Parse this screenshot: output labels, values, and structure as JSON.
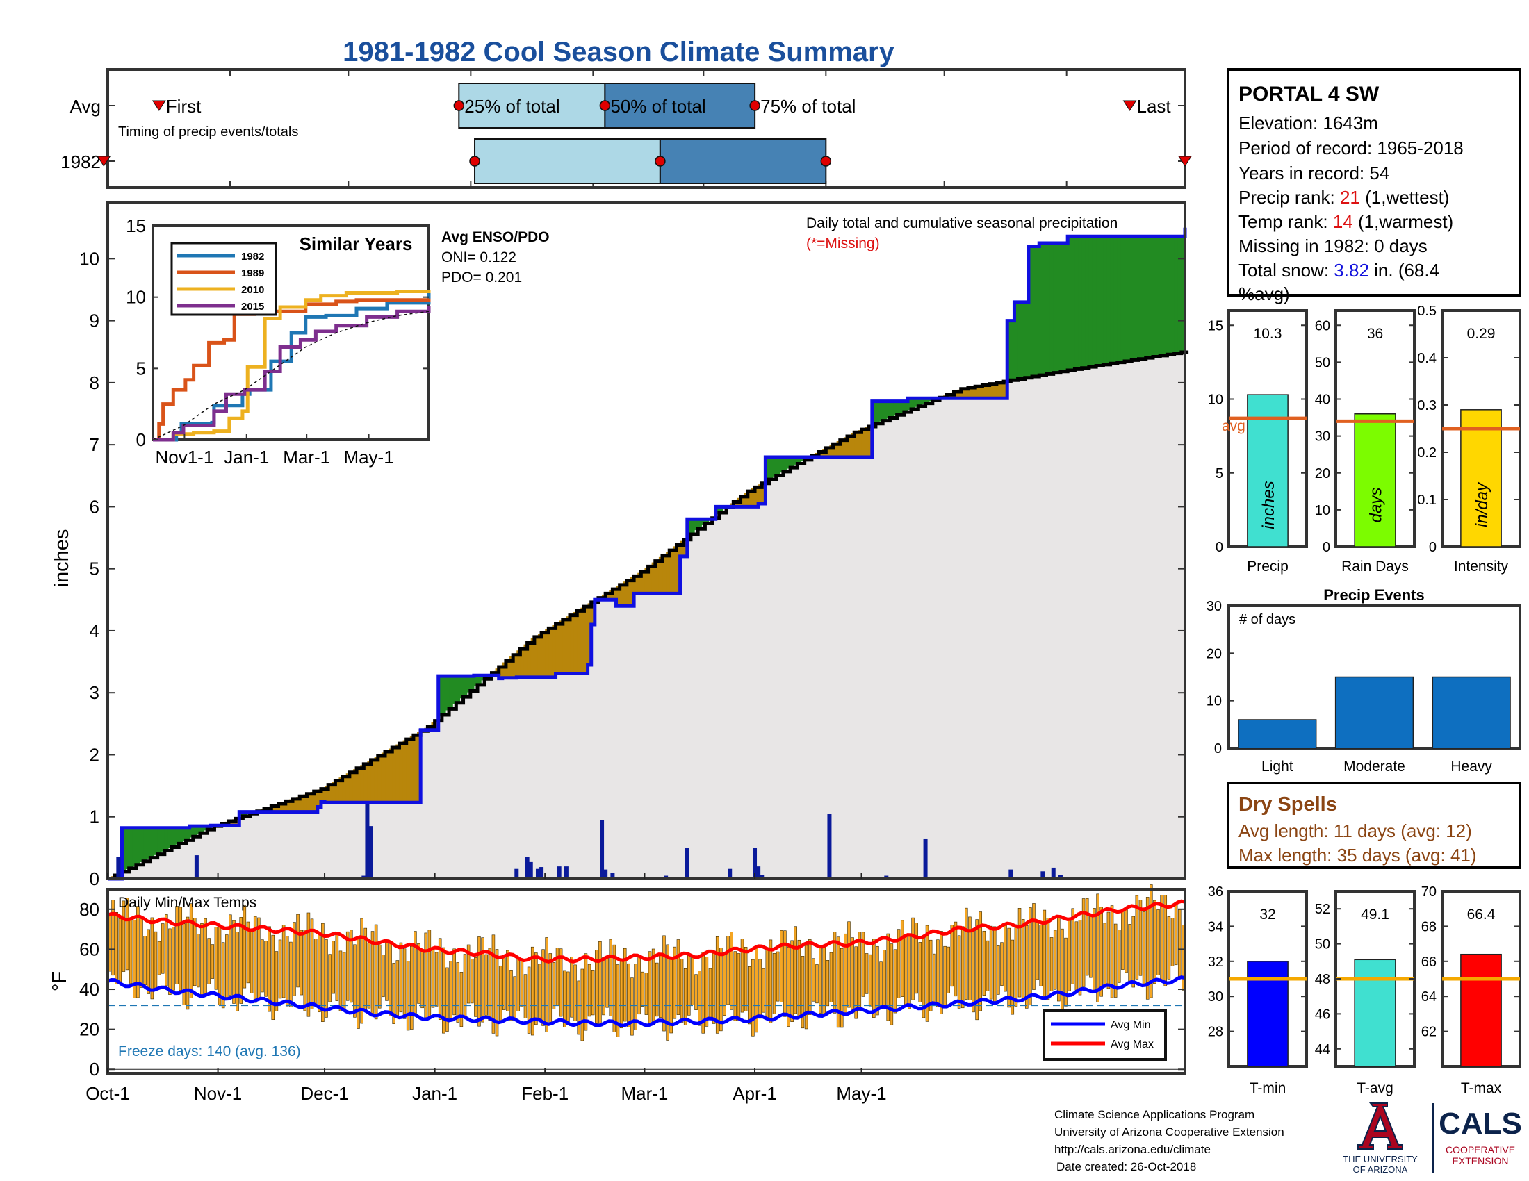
{
  "title": "1981-1982 Cool Season Climate Summary",
  "timing": {
    "row_labels": [
      "Avg",
      "1982"
    ],
    "first_label": "First",
    "last_label": "Last",
    "p25_label": "25% of total",
    "p50_label": "50% of total",
    "p75_label": "75% of total",
    "caption": "Timing of precip events/totals",
    "avg": {
      "first": 13,
      "p25": 89,
      "p50": 126,
      "p75": 164,
      "last": 259
    },
    "y1982": {
      "first": -1,
      "p25": 93,
      "p50": 140,
      "p75": 182,
      "last": 273
    }
  },
  "station": {
    "name": "PORTAL 4 SW",
    "elevation": "Elevation: 1643m",
    "period": "Period of record: 1965-2018",
    "years": "Years in record: 54",
    "precip_rank_label": "Precip rank: ",
    "precip_rank_value": "21",
    "precip_rank_note": " (1,wettest)",
    "temp_rank_label": "Temp rank: ",
    "temp_rank_value": "14",
    "temp_rank_note": " (1,warmest)",
    "missing": "Missing in 1982: 0 days",
    "snow_label": "Total snow: ",
    "snow_value": "3.82",
    "snow_note_1": " in. (68.4",
    "snow_note_2": "%avg)"
  },
  "precip_panel": {
    "ylabel": "inches",
    "yticks": [
      0,
      1,
      2,
      3,
      4,
      5,
      6,
      7,
      8,
      9,
      10
    ],
    "xticks": [
      "Oct-1",
      "Nov-1",
      "Dec-1",
      "Jan-1",
      "Feb-1",
      "Mar-1",
      "Apr-1",
      "May-1"
    ],
    "legend_line1": "Daily total and cumulative seasonal precipitation",
    "legend_line2": "(*=Missing)",
    "enso_title": "Avg ENSO/PDO",
    "oni": "ONI= 0.122",
    "pdo": "PDO= 0.201"
  },
  "similar_years": {
    "title": "Similar Years",
    "yticks": [
      "0",
      "5",
      "10",
      "15"
    ],
    "xticks": [
      "Nov1-1",
      "Jan-1",
      "Mar-1",
      "May-1"
    ],
    "legend": [
      "1982",
      "1989",
      "2010",
      "2015"
    ]
  },
  "temp_panel": {
    "ylabel": "°F",
    "title": "Daily Min/Max Temps",
    "yticks": [
      0,
      20,
      40,
      60,
      80
    ],
    "freeze_line": 32,
    "freeze_text": "Freeze days: 140 (avg. 136)",
    "legend_min": "Avg Min",
    "legend_max": "Avg Max"
  },
  "summary_bars": [
    {
      "name": "Precip",
      "unit": "inches",
      "value": 10.3,
      "value_label": "10.3",
      "avg": 8.7,
      "ylim": [
        0,
        16
      ],
      "yticks": [
        "0",
        "5",
        "10",
        "15"
      ],
      "yvals": [
        0,
        5,
        10,
        15
      ],
      "color": "#40e0d0",
      "avg_label": "avg"
    },
    {
      "name": "Rain Days",
      "unit": "days",
      "value": 36,
      "value_label": "36",
      "avg": 34,
      "ylim": [
        0,
        64
      ],
      "yticks": [
        "0",
        "10",
        "20",
        "30",
        "40",
        "50",
        "60"
      ],
      "yvals": [
        0,
        10,
        20,
        30,
        40,
        50,
        60
      ],
      "color": "#7cfc00",
      "avg_label": ""
    },
    {
      "name": "Intensity",
      "unit": "in/day",
      "value": 0.29,
      "value_label": "0.29",
      "avg": 0.25,
      "ylim": [
        0,
        0.5
      ],
      "yticks": [
        "0",
        "0.1",
        "0.2",
        "0.3",
        "0.4",
        "0.5"
      ],
      "yvals": [
        0,
        0.1,
        0.2,
        0.3,
        0.4,
        0.5
      ],
      "color": "#ffd700",
      "avg_label": ""
    }
  ],
  "precip_events": {
    "title": "Precip Events",
    "ylabel": "# of days",
    "categories": [
      "Light",
      "Moderate",
      "Heavy"
    ],
    "values": [
      6,
      15,
      15
    ],
    "ylim": [
      0,
      30
    ],
    "yticks": [
      "0",
      "10",
      "20",
      "30"
    ]
  },
  "dry_spells": {
    "title": "Dry Spells",
    "avg_length": "Avg length: 11 days (avg: 12)",
    "max_length": "Max length: 35 days (avg: 41)"
  },
  "temp_bars": [
    {
      "name": "T-min",
      "value": 32,
      "value_label": "32",
      "avg": 31,
      "ylim": [
        26,
        36
      ],
      "yticks": [
        "28",
        "30",
        "32",
        "34",
        "36"
      ],
      "yvals": [
        28,
        30,
        32,
        34,
        36
      ],
      "color": "#0000ff"
    },
    {
      "name": "T-avg",
      "value": 49.1,
      "value_label": "49.1",
      "avg": 48,
      "ylim": [
        43,
        53
      ],
      "yticks": [
        "44",
        "46",
        "48",
        "50",
        "52"
      ],
      "yvals": [
        44,
        46,
        48,
        50,
        52
      ],
      "color": "#40e0d0"
    },
    {
      "name": "T-max",
      "value": 66.4,
      "value_label": "66.4",
      "avg": 65,
      "ylim": [
        60,
        70
      ],
      "yticks": [
        "62",
        "64",
        "66",
        "68",
        "70"
      ],
      "yvals": [
        62,
        64,
        66,
        68,
        70
      ],
      "color": "#ff0000"
    }
  ],
  "footer": {
    "line1": "Climate Science Applications Program",
    "line2": "University of Arizona Cooperative Extension",
    "line3": "http://cals.arizona.edu/climate",
    "line4": "Date created: 26-Oct-2018",
    "ua_line1": "THE UNIVERSITY",
    "ua_line2": "OF ARIZONA",
    "cals": "CALS",
    "cals_sub1": "COOPERATIVE",
    "cals_sub2": "EXTENSION"
  },
  "chart_data": [
    {
      "type": "area",
      "title": "Daily total and cumulative seasonal precipitation",
      "ylabel": "inches",
      "ylim": [
        0,
        10.5
      ],
      "x_unit": "day of season from Oct-1",
      "series": [
        {
          "name": "Cumulative 1982",
          "x": [
            0,
            4,
            23,
            27,
            29,
            37,
            59,
            60,
            61,
            87,
            88,
            93,
            103,
            110,
            111,
            115,
            119,
            121,
            126,
            135,
            136,
            137,
            143,
            148,
            161,
            163,
            171,
            183,
            185,
            210,
            215,
            225,
            253,
            255,
            259,
            260,
            262,
            270,
            273,
            275,
            303
          ],
          "values": [
            0,
            0.82,
            0.85,
            0.85,
            0.86,
            1.08,
            1.16,
            1.24,
            1.23,
            1.23,
            2.4,
            3.27,
            3.28,
            3.23,
            3.24,
            3.25,
            3.25,
            3.25,
            3.31,
            3.45,
            4.1,
            4.5,
            4.4,
            4.6,
            5.2,
            5.8,
            6.0,
            6.05,
            6.8,
            6.8,
            7.7,
            7.75,
            9.0,
            9.3,
            10.2,
            10.2,
            10.25,
            10.36,
            10.36,
            10.36,
            10.5
          ]
        },
        {
          "name": "Average",
          "x": [
            0,
            30,
            60,
            90,
            120,
            150,
            180,
            210,
            240,
            270,
            303
          ],
          "values": [
            0.0,
            0.85,
            1.45,
            2.45,
            3.9,
            4.95,
            6.25,
            7.2,
            7.9,
            8.2,
            8.5
          ]
        }
      ],
      "daily_precip": {
        "x": [
          3,
          25,
          72,
          73,
          74,
          115,
          118,
          119,
          121,
          122,
          127,
          129,
          139,
          140,
          142,
          150,
          157,
          163,
          175,
          182,
          183,
          184,
          203,
          219,
          230,
          254,
          263,
          266,
          268
        ],
        "values": [
          0.35,
          0.38,
          0.05,
          1.2,
          0.85,
          0.16,
          0.35,
          0.27,
          0.16,
          0.19,
          0.2,
          0.2,
          0.95,
          0.15,
          0.1,
          0.02,
          0.05,
          0.5,
          0.16,
          0.5,
          0.2,
          0.06,
          1.05,
          0.05,
          0.65,
          0.15,
          0.12,
          0.18,
          0.06
        ]
      },
      "xticks": [
        "Oct-1",
        "Nov-1",
        "Dec-1",
        "Jan-1",
        "Feb-1",
        "Mar-1",
        "Apr-1",
        "May-1"
      ]
    },
    {
      "type": "line",
      "title": "Similar Years",
      "ylim": [
        0,
        15
      ],
      "x_unit": "day of season",
      "series": [
        {
          "name": "1982",
          "x": [
            0,
            23,
            28,
            58,
            60,
            88,
            95,
            116,
            136,
            150,
            170,
            200,
            230,
            271
          ],
          "values": [
            0,
            0.5,
            1.1,
            1.2,
            2.4,
            3.2,
            3.5,
            5.5,
            7.5,
            8.6,
            8.7,
            9.2,
            9.6,
            10.3
          ]
        },
        {
          "name": "1989",
          "x": [
            0,
            6,
            10,
            20,
            32,
            40,
            55,
            70,
            80,
            100,
            120,
            150,
            180,
            200,
            230,
            271
          ],
          "values": [
            0,
            1.1,
            2.5,
            3.5,
            4.2,
            5.2,
            6.8,
            7.0,
            8.8,
            8.9,
            9.0,
            9.5,
            9.7,
            9.8,
            9.8,
            9.9
          ]
        },
        {
          "name": "2010",
          "x": [
            0,
            20,
            40,
            60,
            75,
            88,
            93,
            110,
            125,
            150,
            165,
            190,
            240,
            271
          ],
          "values": [
            0,
            0.4,
            0.5,
            0.6,
            1.5,
            2.0,
            5.1,
            8.5,
            9.3,
            9.8,
            10.1,
            10.3,
            10.4,
            10.5
          ]
        },
        {
          "name": "2015",
          "x": [
            0,
            20,
            30,
            60,
            72,
            90,
            110,
            125,
            145,
            160,
            180,
            210,
            240,
            271
          ],
          "values": [
            0,
            0.5,
            1.0,
            2.0,
            3.2,
            3.5,
            4.8,
            6.5,
            7.0,
            7.6,
            8.0,
            8.6,
            9.0,
            9.4
          ]
        },
        {
          "name": "Average",
          "x": [
            0,
            30,
            60,
            90,
            120,
            150,
            180,
            210,
            240,
            271
          ],
          "values": [
            0,
            1.0,
            2.5,
            3.5,
            5.0,
            6.5,
            7.5,
            8.2,
            8.7,
            9.0
          ]
        }
      ]
    },
    {
      "type": "bar",
      "title": "Daily Min/Max Temps",
      "ylabel": "°F",
      "ylim": [
        -2,
        90
      ],
      "x_unit": "day of season from Oct-1",
      "series": [
        {
          "name": "Avg Max",
          "x": [
            0,
            15,
            30,
            45,
            60,
            75,
            90,
            105,
            120,
            135,
            150,
            165,
            180,
            195,
            210,
            225,
            240,
            255,
            270,
            285,
            303
          ],
          "values": [
            77,
            74,
            72,
            70,
            68,
            64,
            60,
            58,
            55,
            55,
            56,
            57,
            60,
            62,
            63,
            66,
            70,
            72,
            76,
            80,
            83
          ]
        },
        {
          "name": "Avg Min",
          "x": [
            0,
            15,
            30,
            45,
            60,
            75,
            90,
            105,
            120,
            135,
            150,
            165,
            180,
            195,
            210,
            225,
            240,
            255,
            270,
            285,
            303
          ],
          "values": [
            44,
            40,
            37,
            34,
            31,
            28,
            26,
            25,
            24,
            23,
            23,
            24,
            25,
            27,
            29,
            31,
            33,
            35,
            38,
            42,
            45
          ]
        }
      ],
      "freeze_line": 32,
      "xticks": [
        "Oct-1",
        "Nov-1",
        "Dec-1",
        "Jan-1",
        "Feb-1",
        "Mar-1",
        "Apr-1",
        "May-1"
      ]
    },
    {
      "type": "bar",
      "title": "Precip Events",
      "categories": [
        "Light",
        "Moderate",
        "Heavy"
      ],
      "values": [
        6,
        15,
        15
      ],
      "ylabel": "# of days",
      "ylim": [
        0,
        30
      ]
    },
    {
      "type": "bar",
      "categories": [
        "Precip",
        "Rain Days",
        "Intensity",
        "T-min",
        "T-avg",
        "T-max"
      ],
      "values": [
        10.3,
        36,
        0.29,
        32,
        49.1,
        66.4
      ]
    }
  ],
  "colors": {
    "title": "#1a4f9c",
    "wet": "#228b22",
    "dry": "#b8860b",
    "cumulative_line": "#1010e0",
    "avg_fill": "#e8e6e6",
    "daily_bar": "#0a1a9a",
    "temp_bar": "#f5a623",
    "avg_line": "#e06020",
    "brown": "#8b4513",
    "rank_red": "#dd1111",
    "snow_blue": "#1111dd",
    "ua_red": "#ab0520",
    "ua_navy": "#0c234b"
  }
}
